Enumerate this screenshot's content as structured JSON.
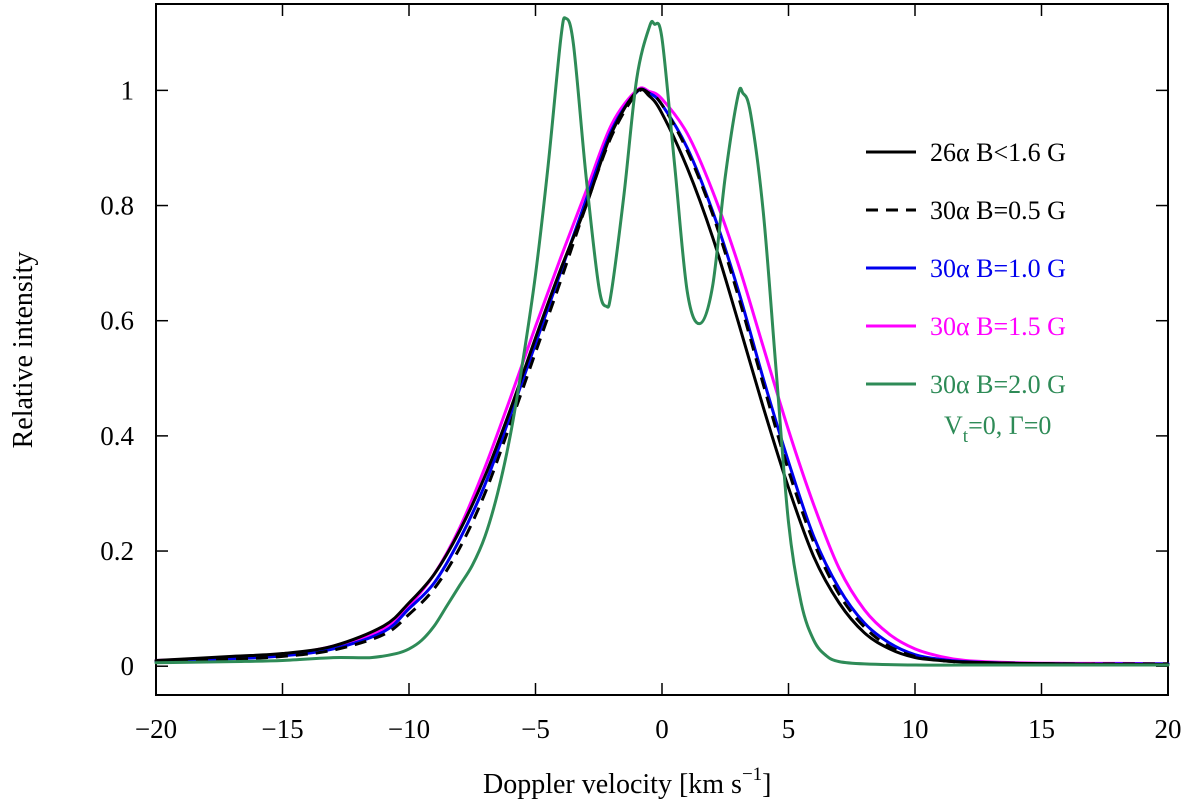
{
  "chart_data": {
    "type": "line",
    "title": "",
    "xlabel": "Doppler velocity [km s",
    "xlabel_unit_exponent": "−1",
    "xlabel_close": "]",
    "ylabel": "Relative intensity",
    "xlim": [
      -20,
      20
    ],
    "ylim": [
      -0.05,
      1.15
    ],
    "grid": false,
    "legend_position": "right",
    "x_ticks": [
      -20,
      -15,
      -10,
      -5,
      0,
      5,
      10,
      15,
      20
    ],
    "x_tick_labels": [
      "−20",
      "−15",
      "−10",
      "−5",
      "0",
      "5",
      "10",
      "15",
      "20"
    ],
    "y_ticks": [
      0,
      0.2,
      0.4,
      0.6,
      0.8,
      1
    ],
    "y_tick_labels": [
      "0",
      "0.2",
      "0.4",
      "0.6",
      "0.8",
      "1"
    ],
    "series": [
      {
        "name": "26α B<1.6 G",
        "color": "#000000",
        "dash": "solid",
        "x": [
          -20,
          -17,
          -15,
          -13,
          -11,
          -10,
          -9,
          -8,
          -7,
          -6,
          -5,
          -4,
          -3,
          -2,
          -1,
          -0.5,
          0,
          1,
          2,
          3,
          4,
          5,
          6,
          7,
          8,
          9,
          10,
          11,
          12,
          14,
          16,
          18,
          20
        ],
        "y": [
          0.01,
          0.017,
          0.022,
          0.035,
          0.07,
          0.11,
          0.16,
          0.235,
          0.33,
          0.445,
          0.57,
          0.69,
          0.8,
          0.925,
          0.998,
          0.99,
          0.96,
          0.865,
          0.745,
          0.6,
          0.45,
          0.31,
          0.19,
          0.11,
          0.058,
          0.03,
          0.015,
          0.01,
          0.007,
          0.005,
          0.004,
          0.003,
          0.003
        ]
      },
      {
        "name": "30α B=0.5 G",
        "color": "#000000",
        "dash": "dashed",
        "x": [
          -20,
          -17,
          -15,
          -13,
          -11,
          -10,
          -9,
          -8,
          -7,
          -6,
          -5,
          -4,
          -3,
          -2,
          -1,
          -0.5,
          0,
          1,
          2,
          3,
          4,
          5,
          6,
          7,
          8,
          9,
          10,
          11,
          12,
          14,
          16,
          18,
          20
        ],
        "y": [
          0.008,
          0.012,
          0.017,
          0.028,
          0.055,
          0.09,
          0.135,
          0.205,
          0.3,
          0.42,
          0.545,
          0.67,
          0.8,
          0.92,
          0.995,
          0.995,
          0.975,
          0.895,
          0.785,
          0.645,
          0.49,
          0.34,
          0.215,
          0.125,
          0.068,
          0.034,
          0.017,
          0.01,
          0.007,
          0.005,
          0.004,
          0.004,
          0.004
        ]
      },
      {
        "name": "30α B=1.0 G",
        "color": "#0000ee",
        "dash": "solid",
        "x": [
          -20,
          -17,
          -15,
          -13,
          -11,
          -10,
          -9,
          -8,
          -7,
          -6,
          -5,
          -4,
          -3,
          -2,
          -1,
          -0.5,
          0,
          1,
          2,
          3,
          4,
          5,
          6,
          7,
          8,
          9,
          10,
          11,
          12,
          14,
          16,
          18,
          20
        ],
        "y": [
          0.008,
          0.013,
          0.018,
          0.03,
          0.06,
          0.1,
          0.145,
          0.22,
          0.315,
          0.435,
          0.56,
          0.685,
          0.81,
          0.93,
          0.997,
          0.995,
          0.975,
          0.9,
          0.79,
          0.655,
          0.5,
          0.355,
          0.225,
          0.135,
          0.075,
          0.04,
          0.02,
          0.012,
          0.008,
          0.005,
          0.004,
          0.004,
          0.004
        ]
      },
      {
        "name": "30α B=1.5 G",
        "color": "#ff00ff",
        "dash": "solid",
        "x": [
          -20,
          -17,
          -15,
          -13,
          -11,
          -10,
          -9,
          -8,
          -7,
          -6,
          -5,
          -4,
          -3,
          -2,
          -1,
          -0.5,
          0,
          1,
          2,
          3,
          4,
          5,
          6,
          7,
          8,
          9,
          10,
          11,
          12,
          14,
          16,
          18,
          20
        ],
        "y": [
          0.01,
          0.015,
          0.02,
          0.035,
          0.065,
          0.105,
          0.16,
          0.24,
          0.345,
          0.465,
          0.59,
          0.71,
          0.825,
          0.94,
          1.0,
          0.998,
          0.985,
          0.925,
          0.825,
          0.7,
          0.555,
          0.41,
          0.28,
          0.17,
          0.098,
          0.055,
          0.03,
          0.017,
          0.01,
          0.006,
          0.005,
          0.005,
          0.004
        ]
      },
      {
        "name": "30α B=2.0 G",
        "color": "#2e8b57",
        "dash": "solid",
        "x": [
          -20,
          -17,
          -15,
          -13,
          -11.5,
          -10.5,
          -10,
          -9.5,
          -9,
          -8.5,
          -8,
          -7.5,
          -7,
          -6.5,
          -6,
          -5.5,
          -5,
          -4.5,
          -4,
          -3.8,
          -3.5,
          -3,
          -2.5,
          -2.2,
          -2,
          -1.5,
          -1,
          -0.5,
          -0.3,
          0,
          0.5,
          1,
          1.5,
          2,
          2.5,
          3,
          3.2,
          3.5,
          4,
          4.5,
          5,
          5.5,
          6,
          6.5,
          7,
          8,
          10,
          12,
          15,
          20
        ],
        "y": [
          0.006,
          0.008,
          0.01,
          0.015,
          0.015,
          0.022,
          0.03,
          0.045,
          0.07,
          0.105,
          0.14,
          0.175,
          0.225,
          0.3,
          0.4,
          0.53,
          0.68,
          0.87,
          1.09,
          1.125,
          1.08,
          0.85,
          0.66,
          0.625,
          0.65,
          0.82,
          1.02,
          1.11,
          1.115,
          1.09,
          0.87,
          0.65,
          0.595,
          0.66,
          0.85,
          0.99,
          0.995,
          0.96,
          0.79,
          0.52,
          0.25,
          0.11,
          0.045,
          0.018,
          0.008,
          0.004,
          0.002,
          0.002,
          0.002,
          0.002
        ]
      }
    ],
    "legend_note": {
      "prefix_v": "V",
      "sub_t": "t",
      "rest": "=0, Γ=0",
      "color": "#2e8b57"
    }
  }
}
